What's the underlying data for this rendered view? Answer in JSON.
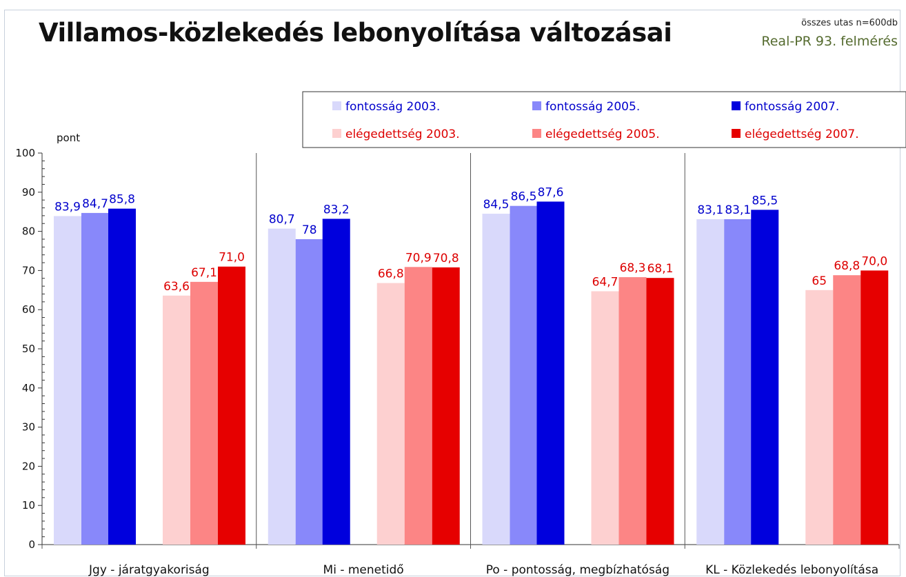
{
  "header": {
    "title": "Villamos-közlekedés lebonyolítása változásai",
    "sample_note": "összes utas n=600db",
    "source_note": "Real-PR 93. felmérés"
  },
  "chart_data": {
    "type": "bar",
    "ylabel": "pont",
    "ylim": [
      0,
      100
    ],
    "yticks": [
      0,
      10,
      20,
      30,
      40,
      50,
      60,
      70,
      80,
      90,
      100
    ],
    "grid": false,
    "legend_position": "top-right",
    "categories": [
      "Jgy - járatgyakoriság",
      "Mi - menetidő",
      "Po - pontosság, megbízhatóság",
      "KL - Közlekedés lebonyolítása"
    ],
    "series": [
      {
        "name": "fontosság 2003.",
        "color": "#d9d9fb",
        "label_color": "#0000cc",
        "values": [
          83.9,
          80.7,
          84.5,
          83.1
        ],
        "labels": [
          "83,9",
          "80,7",
          "84,5",
          "83,1"
        ]
      },
      {
        "name": "fontosság 2005.",
        "color": "#8888fa",
        "label_color": "#0000cc",
        "values": [
          84.7,
          78,
          86.5,
          83.1
        ],
        "labels": [
          "84,7",
          "78",
          "86,5",
          "83,1"
        ]
      },
      {
        "name": "fontosság 2007.",
        "color": "#0000dd",
        "label_color": "#0000cc",
        "values": [
          85.8,
          83.2,
          87.6,
          85.5
        ],
        "labels": [
          "85,8",
          "83,2",
          "87,6",
          "85,5"
        ]
      },
      {
        "name": "elégedettség 2003.",
        "color": "#fdd0d0",
        "label_color": "#dd0000",
        "values": [
          63.6,
          66.8,
          64.7,
          65
        ],
        "labels": [
          "63,6",
          "66,8",
          "64,7",
          "65"
        ]
      },
      {
        "name": "elégedettség 2005.",
        "color": "#fc8585",
        "label_color": "#dd0000",
        "values": [
          67.1,
          70.9,
          68.3,
          68.8
        ],
        "labels": [
          "67,1",
          "70,9",
          "68,3",
          "68,8"
        ]
      },
      {
        "name": "elégedettség 2007.",
        "color": "#e60000",
        "label_color": "#dd0000",
        "values": [
          71.0,
          70.8,
          68.1,
          70.0
        ],
        "labels": [
          "71,0",
          "70,8",
          "68,1",
          "70,0"
        ]
      }
    ]
  }
}
